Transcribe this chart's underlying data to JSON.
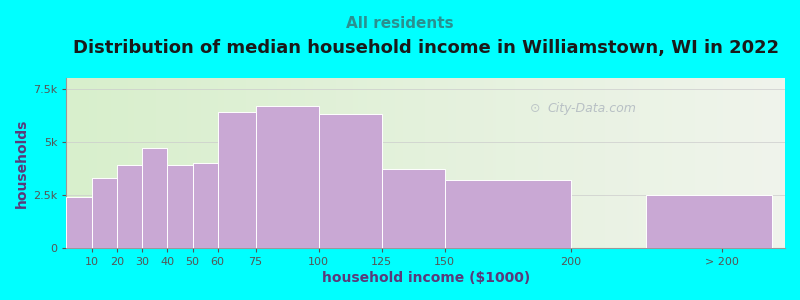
{
  "title": "Distribution of median household income in Williamstown, WI in 2022",
  "subtitle": "All residents",
  "xlabel": "household income ($1000)",
  "ylabel": "households",
  "background_color": "#00FFFF",
  "bar_color": "#c9a8d4",
  "bar_edge_color": "#ffffff",
  "categories": [
    "10",
    "20",
    "30",
    "40",
    "50",
    "60",
    "75",
    "100",
    "125",
    "150",
    "200",
    "> 200"
  ],
  "values": [
    2400,
    3300,
    3900,
    4700,
    3900,
    4000,
    6400,
    6700,
    6300,
    3700,
    3200,
    2500
  ],
  "bar_lefts": [
    0,
    10,
    20,
    30,
    40,
    50,
    60,
    75,
    100,
    125,
    150,
    230
  ],
  "bar_widths": [
    10,
    10,
    10,
    10,
    10,
    10,
    15,
    25,
    25,
    25,
    50,
    50
  ],
  "xtick_positions": [
    10,
    20,
    30,
    40,
    50,
    60,
    75,
    100,
    125,
    150,
    200,
    260
  ],
  "xtick_labels": [
    "10",
    "20",
    "30",
    "40",
    "50",
    "60",
    "75",
    "100",
    "125",
    "150",
    "200",
    "> 200"
  ],
  "xlim": [
    0,
    285
  ],
  "ylim": [
    0,
    8000
  ],
  "yticks": [
    0,
    2500,
    5000,
    7500
  ],
  "ytick_labels": [
    "0",
    "2.5k",
    "5k",
    "7.5k"
  ],
  "title_fontsize": 13,
  "subtitle_fontsize": 11,
  "axis_label_fontsize": 10,
  "title_color": "#1a1a1a",
  "subtitle_color": "#2a9090",
  "axis_label_color": "#5a3a7a",
  "tick_color": "#555555",
  "watermark_text": "City-Data.com",
  "watermark_color": "#b0b8c0"
}
